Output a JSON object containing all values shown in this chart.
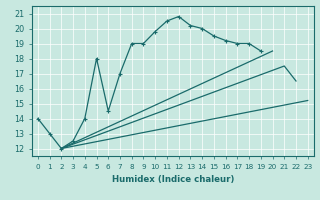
{
  "xlabel": "Humidex (Indice chaleur)",
  "xlim": [
    -0.5,
    23.5
  ],
  "ylim": [
    11.5,
    21.5
  ],
  "yticks": [
    12,
    13,
    14,
    15,
    16,
    17,
    18,
    19,
    20,
    21
  ],
  "xticks": [
    0,
    1,
    2,
    3,
    4,
    5,
    6,
    7,
    8,
    9,
    10,
    11,
    12,
    13,
    14,
    15,
    16,
    17,
    18,
    19,
    20,
    21,
    22,
    23
  ],
  "bg_color": "#c8e8e0",
  "line_color": "#1a6b6b",
  "grid_color": "#ffffff",
  "main_line": {
    "x": [
      0,
      1,
      2,
      3,
      4,
      5,
      6,
      7,
      8,
      9,
      10,
      11,
      12,
      13,
      14,
      15,
      16,
      17,
      18,
      19
    ],
    "y": [
      14,
      13,
      12,
      12.5,
      14,
      18,
      14.5,
      17,
      19,
      19,
      19.8,
      20.5,
      20.8,
      20.2,
      20,
      19.5,
      19.2,
      19,
      19,
      18.5
    ]
  },
  "fan_lines": [
    {
      "x": [
        2,
        20
      ],
      "y": [
        12,
        18.5
      ]
    },
    {
      "x": [
        2,
        21,
        22
      ],
      "y": [
        12,
        17.5,
        16.5
      ]
    },
    {
      "x": [
        2,
        23
      ],
      "y": [
        12,
        15.2
      ]
    }
  ]
}
